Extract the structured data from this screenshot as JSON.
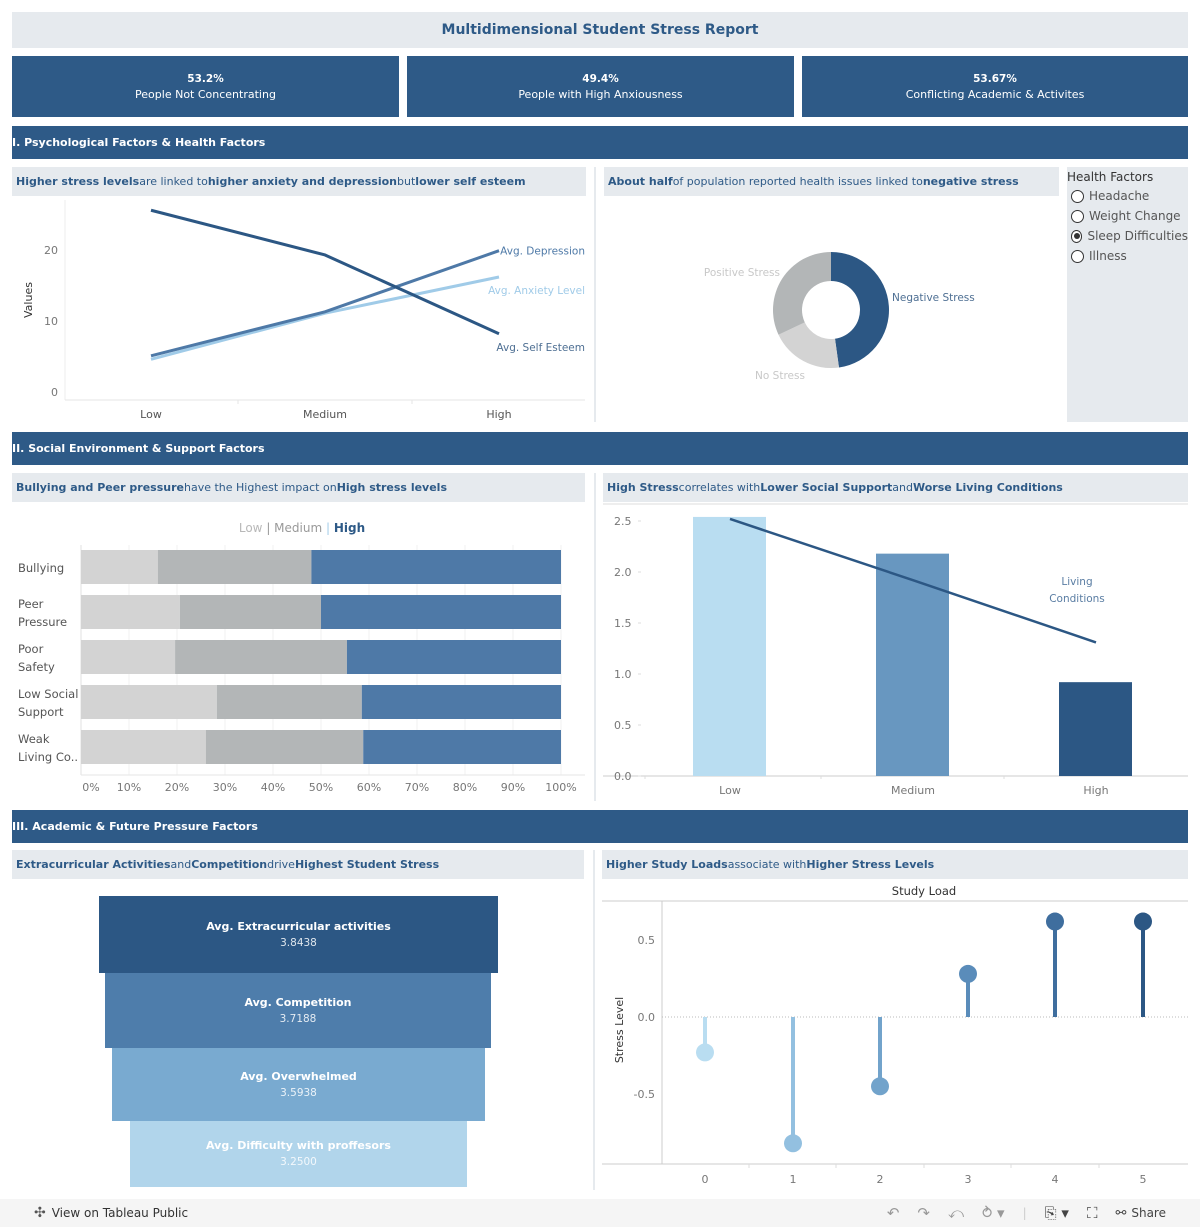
{
  "title": "Multidimensional Student Stress Report",
  "kpis": [
    {
      "value": "53.2%",
      "label": "People Not Concentrating"
    },
    {
      "value": "49.4%",
      "label": "People with High Anxiousness"
    },
    {
      "value": "53.67%",
      "label": "Conflicting Academic & Activites"
    }
  ],
  "sections": {
    "s1": "I. Psychological Factors & Health Factors",
    "s2": "II. Social Environment & Support Factors",
    "s3": "III. Academic & Future Pressure Factors"
  },
  "subtitles": {
    "line": [
      {
        "t": "Higher stress levels",
        "b": true
      },
      {
        "t": " are linked to ",
        "b": false
      },
      {
        "t": "higher anxiety and depression",
        "b": true
      },
      {
        "t": " but ",
        "b": false
      },
      {
        "t": "lower self esteem",
        "b": true
      }
    ],
    "donut": [
      {
        "t": "About half",
        "b": true
      },
      {
        "t": " of population reported health issues linked to ",
        "b": false
      },
      {
        "t": "negative stress",
        "b": true
      }
    ],
    "stacked": [
      {
        "t": "Bullying and Peer pressure",
        "b": true
      },
      {
        "t": " have the Highest impact on ",
        "b": false
      },
      {
        "t": "High stress levels",
        "b": true
      }
    ],
    "combo": [
      {
        "t": "High Stress",
        "b": true
      },
      {
        "t": " correlates with ",
        "b": false
      },
      {
        "t": "Lower Social Support",
        "b": true
      },
      {
        "t": " and ",
        "b": false
      },
      {
        "t": "Worse Living Conditions",
        "b": true
      }
    ],
    "funnel": [
      {
        "t": "Extracurricular Activities",
        "b": true
      },
      {
        "t": " and ",
        "b": false
      },
      {
        "t": "Competition",
        "b": true
      },
      {
        "t": " drive ",
        "b": false
      },
      {
        "t": "Highest Student Stress",
        "b": true
      }
    ],
    "lollipop": [
      {
        "t": "Higher Study Loads",
        "b": true
      },
      {
        "t": " associate with ",
        "b": false
      },
      {
        "t": "Higher Stress Levels",
        "b": true
      }
    ]
  },
  "health_filter": {
    "title": "Health Factors",
    "options": [
      "Headache",
      "Weight Change",
      "Sleep Difficulties",
      "Illness"
    ],
    "selected": "Sleep Difficulties"
  },
  "colors": {
    "brand": "#2e5a87",
    "panel": "#e6eaee",
    "dark_blue": "#2c5784",
    "mid_blue": "#4e79a7",
    "light_blue": "#a0cbe8",
    "bar_med": "#6897c0",
    "bar_light": "#b9ddf1",
    "gray_light": "#d3d3d3",
    "gray_mid": "#b3b6b7"
  },
  "chart_data": [
    {
      "type": "line",
      "title": "Higher stress levels are linked to higher anxiety and depression but lower self esteem",
      "categories": [
        "Low",
        "Medium",
        "High"
      ],
      "ylabel": "Values",
      "yticks": [
        0,
        10,
        20
      ],
      "ylim": [
        0,
        27
      ],
      "series": [
        {
          "name": "Avg. Self Esteem",
          "values": [
            25.6,
            19.3,
            8.2
          ],
          "color": "#2c5784"
        },
        {
          "name": "Avg. Depression",
          "values": [
            5.1,
            11.3,
            19.9
          ],
          "color": "#4e79a7"
        },
        {
          "name": "Avg. Anxiety Level",
          "values": [
            4.6,
            11.1,
            16.2
          ],
          "color": "#a0cbe8"
        }
      ]
    },
    {
      "type": "pie",
      "subtype": "donut",
      "title": "About half of population reported health issues linked to negative stress",
      "filter": "Sleep Difficulties",
      "slices": [
        {
          "name": "Negative Stress",
          "value": 47.8,
          "color": "#2c5784"
        },
        {
          "name": "No Stress",
          "value": 20.2,
          "color": "#d3d3d3"
        },
        {
          "name": "Positive Stress",
          "value": 32.0,
          "color": "#b3b6b7"
        }
      ]
    },
    {
      "type": "bar",
      "subtype": "stacked-100-horizontal",
      "title": "Bullying and Peer pressure have the Highest impact on High stress levels",
      "legend": [
        "Low",
        "Medium",
        "High"
      ],
      "categories": [
        "Bullying",
        "Peer Pressure",
        "Poor Safety",
        "Low Social Support",
        "Weak Living Co.."
      ],
      "category_lines": [
        [
          "Bullying"
        ],
        [
          "Peer",
          "Pressure"
        ],
        [
          "Poor",
          "Safety"
        ],
        [
          "Low Social",
          "Support"
        ],
        [
          "Weak",
          "Living Co.."
        ]
      ],
      "series": [
        {
          "name": "Low",
          "values": [
            16.0,
            20.6,
            19.6,
            28.3,
            26.0
          ],
          "color": "#d3d3d3"
        },
        {
          "name": "Medium",
          "values": [
            32.0,
            29.4,
            35.8,
            30.2,
            32.8
          ],
          "color": "#b3b6b7"
        },
        {
          "name": "High",
          "values": [
            52.0,
            50.0,
            44.6,
            41.5,
            41.2
          ],
          "color": "#4e79a7"
        }
      ],
      "xticks": [
        "0%",
        "10%",
        "20%",
        "30%",
        "40%",
        "50%",
        "60%",
        "70%",
        "80%",
        "90%",
        "100%"
      ]
    },
    {
      "type": "bar",
      "subtype": "bar-with-line",
      "title": "High Stress correlates with Lower Social Support and Worse Living Conditions",
      "categories": [
        "Low",
        "Medium",
        "High"
      ],
      "yticks": [
        "0.0",
        "0.5",
        "1.0",
        "1.5",
        "2.0",
        "2.5"
      ],
      "ylim": [
        0,
        2.6
      ],
      "series": [
        {
          "name": "Social Support",
          "type": "bar",
          "values": [
            2.54,
            2.18,
            0.92
          ],
          "colors": [
            "#b9ddf1",
            "#6897c0",
            "#2c5784"
          ]
        },
        {
          "name": "Living Conditions",
          "type": "line",
          "values": [
            2.52,
            1.92,
            1.31
          ],
          "color": "#2c5784"
        }
      ],
      "annotation": [
        "Living",
        "Conditions"
      ]
    },
    {
      "type": "bar",
      "subtype": "funnel",
      "title": "Extracurricular Activities and Competition drive Highest Student Stress",
      "categories": [
        "Avg. Extracurricular activities",
        "Avg. Competition",
        "Avg. Overwhelmed",
        "Avg. Difficulty with proffesors"
      ],
      "values": [
        "3.8438",
        "3.7188",
        "3.5938",
        "3.2500"
      ],
      "colors": [
        "#2c5784",
        "#4e7dab",
        "#79aad0",
        "#b1d5eb"
      ]
    },
    {
      "type": "scatter",
      "subtype": "lollipop",
      "title": "Higher Study Loads associate with Higher Stress Levels",
      "xlabel": "Study Load",
      "ylabel": "Stress Level",
      "x": [
        0,
        1,
        2,
        3,
        4,
        5
      ],
      "y": [
        -0.23,
        -0.82,
        -0.45,
        0.28,
        0.62,
        0.62
      ],
      "yticks": [
        "0.5",
        "0.0",
        "-0.5"
      ],
      "colors": [
        "#b9ddf1",
        "#93c0e0",
        "#72a3cb",
        "#5a8cba",
        "#3f6e9e",
        "#2c5784"
      ]
    }
  ],
  "footer": {
    "view_label": "View on Tableau Public",
    "share_label": "Share"
  }
}
